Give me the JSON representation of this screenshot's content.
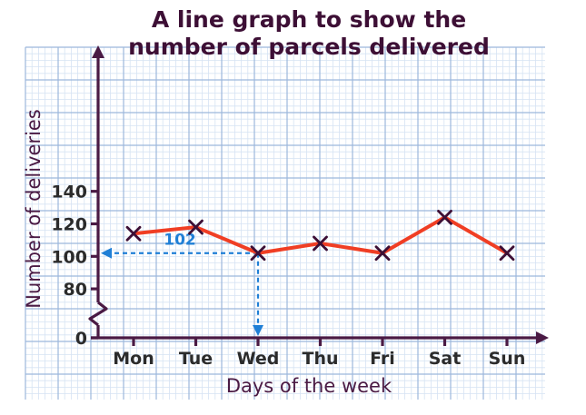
{
  "chart_data": {
    "type": "line",
    "title_lines": [
      "A line graph to show the",
      "number of parcels delivered"
    ],
    "xlabel": "Days of the week",
    "ylabel": "Number of deliveries",
    "categories": [
      "Mon",
      "Tue",
      "Wed",
      "Thu",
      "Fri",
      "Sat",
      "Sun"
    ],
    "values": [
      114,
      118,
      102,
      108,
      102,
      124,
      102
    ],
    "y_ticks": [
      {
        "value": 0,
        "label": "0"
      },
      {
        "value": 80,
        "label": "80"
      },
      {
        "value": 100,
        "label": "100"
      },
      {
        "value": 120,
        "label": "120"
      },
      {
        "value": 140,
        "label": "140"
      }
    ],
    "ylim": [
      70,
      145
    ],
    "y_axis_break": true,
    "grid": true,
    "annotation": {
      "category": "Wed",
      "value": 102,
      "label": "102"
    },
    "colors": {
      "line": "#f03e24",
      "marker": "#3d0f35",
      "axis": "#4a1a44",
      "grid_major": "#9cb8dc",
      "grid_minor": "#d6e3f3",
      "annotation": "#1f7fd6"
    }
  }
}
